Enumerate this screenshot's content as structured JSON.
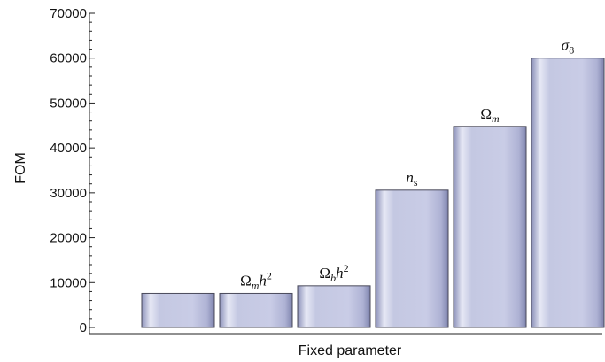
{
  "chart_data": {
    "type": "bar",
    "xlabel": "Fixed parameter",
    "ylabel": "FOM",
    "ylim": [
      0,
      70000
    ],
    "yticks": [
      0,
      10000,
      20000,
      30000,
      40000,
      50000,
      60000,
      70000
    ],
    "yticks_labels": [
      "0",
      "10000",
      "20000",
      "30000",
      "40000",
      "50000",
      "60000",
      "70000"
    ],
    "grid": false,
    "categories": [
      "",
      "Ωmh2",
      "Ωbh2",
      "ns",
      "Ωm",
      "σ8"
    ],
    "values": [
      7600,
      7600,
      9300,
      30600,
      44800,
      60000
    ],
    "bar_labels": [
      [],
      [
        {
          "t": "Ω",
          "it": false
        },
        {
          "t": "m",
          "it": true,
          "sub": true
        },
        {
          "t": "h",
          "it": true
        },
        {
          "t": "2",
          "it": false,
          "sup": true
        }
      ],
      [
        {
          "t": "Ω",
          "it": false
        },
        {
          "t": "b",
          "it": true,
          "sub": true
        },
        {
          "t": "h",
          "it": true
        },
        {
          "t": "2",
          "it": false,
          "sup": true
        }
      ],
      [
        {
          "t": "n",
          "it": true
        },
        {
          "t": "s",
          "it": false,
          "sub": true
        }
      ],
      [
        {
          "t": "Ω",
          "it": false
        },
        {
          "t": "m",
          "it": true,
          "sub": true
        }
      ],
      [
        {
          "t": "σ",
          "it": true
        },
        {
          "t": "8",
          "it": false,
          "sub": true
        }
      ]
    ],
    "bar_color": "#c9cce6"
  }
}
